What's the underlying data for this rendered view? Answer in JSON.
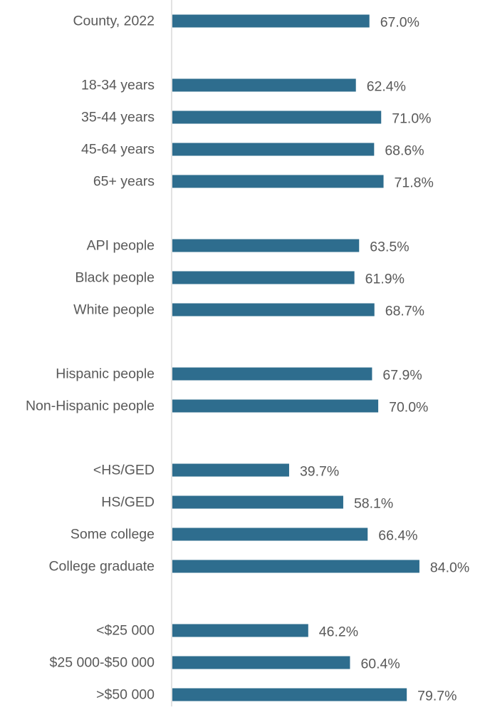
{
  "chart_data": {
    "type": "bar",
    "orientation": "horizontal",
    "title": "",
    "xlabel": "",
    "ylabel": "",
    "grid": false,
    "legend": "none",
    "colors": {
      "bar": "#2e6d8e",
      "label": "#595959",
      "axis": "#d9d9d9"
    },
    "xlim": [
      0,
      100
    ],
    "categories": [
      "County, 2022",
      "",
      "18-34 years",
      "35-44 years",
      "45-64 years",
      "65+ years",
      "",
      "API people",
      "Black people",
      "White people",
      "",
      "Hispanic people",
      "Non-Hispanic people",
      "",
      "<HS/GED",
      "HS/GED",
      "Some college",
      "College graduate",
      "",
      "<$25 000",
      "$25 000-$50 000",
      ">$50 000"
    ],
    "values": [
      67.0,
      null,
      62.4,
      71.0,
      68.6,
      71.8,
      null,
      63.5,
      61.9,
      68.7,
      null,
      67.9,
      70.0,
      null,
      39.7,
      58.1,
      66.4,
      84.0,
      null,
      46.2,
      60.4,
      79.7
    ],
    "data_labels": [
      "67.0%",
      "",
      "62.4%",
      "71.0%",
      "68.6%",
      "71.8%",
      "",
      "63.5%",
      "61.9%",
      "68.7%",
      "",
      "67.9%",
      "70.0%",
      "",
      "39.7%",
      "58.1%",
      "66.4%",
      "84.0%",
      "",
      "46.2%",
      "60.4%",
      "79.7%"
    ]
  }
}
